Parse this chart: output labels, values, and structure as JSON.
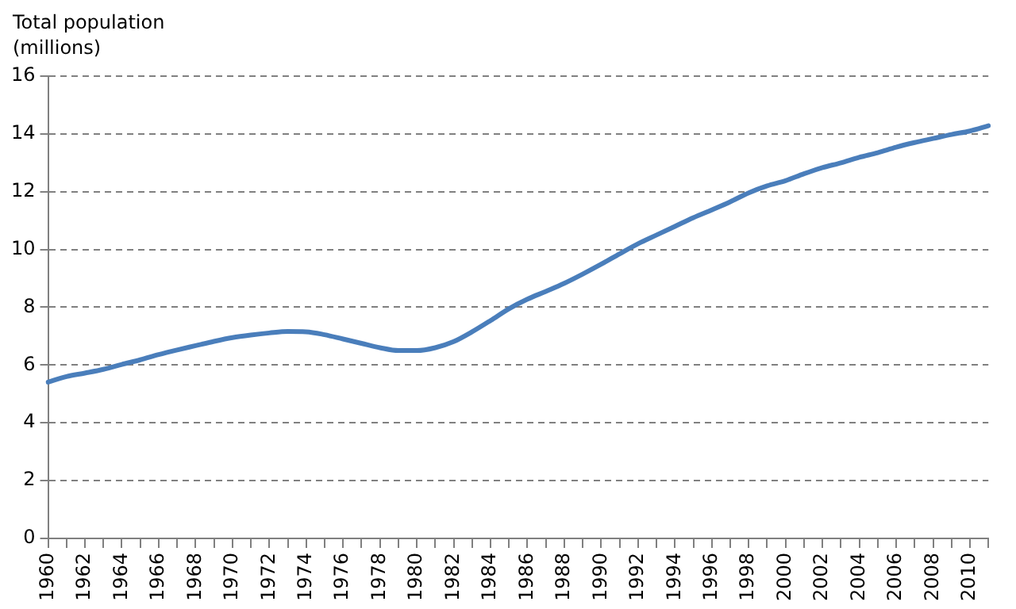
{
  "chart_data": {
    "type": "line",
    "ylabel": "Total population (millions)",
    "categories": [
      "1960",
      null,
      "1962",
      null,
      "1964",
      null,
      "1966",
      null,
      "1968",
      null,
      "1970",
      null,
      "1972",
      null,
      "1974",
      null,
      "1976",
      null,
      "1978",
      null,
      "1980",
      null,
      "1982",
      null,
      "1984",
      null,
      "1986",
      null,
      "1988",
      null,
      "1990",
      null,
      "1992",
      null,
      "1994",
      null,
      "1996",
      null,
      "1998",
      null,
      "2000",
      null,
      "2002",
      null,
      "2004",
      null,
      "2006",
      null,
      "2008",
      null,
      "2010",
      null
    ],
    "series": [
      {
        "color": "#4a7ebb",
        "values": [
          5.41,
          5.6,
          5.72,
          5.85,
          6.02,
          6.18,
          6.36,
          6.52,
          6.67,
          6.82,
          6.95,
          7.04,
          7.11,
          7.16,
          7.15,
          7.05,
          6.9,
          6.75,
          6.6,
          6.5,
          6.5,
          6.6,
          6.81,
          7.15,
          7.54,
          7.95,
          8.28,
          8.55,
          8.83,
          9.15,
          9.49,
          9.85,
          10.2,
          10.5,
          10.8,
          11.1,
          11.37,
          11.65,
          11.96,
          12.2,
          12.38,
          12.62,
          12.83,
          13.0,
          13.19,
          13.35,
          13.54,
          13.7,
          13.84,
          13.98,
          14.1,
          14.28
        ]
      }
    ],
    "ylim": [
      0,
      16
    ],
    "yticks": [
      0,
      2,
      4,
      6,
      8,
      10,
      12,
      14,
      16
    ],
    "grid": "y",
    "legend": false,
    "marker": "none",
    "line_style": "solid"
  }
}
